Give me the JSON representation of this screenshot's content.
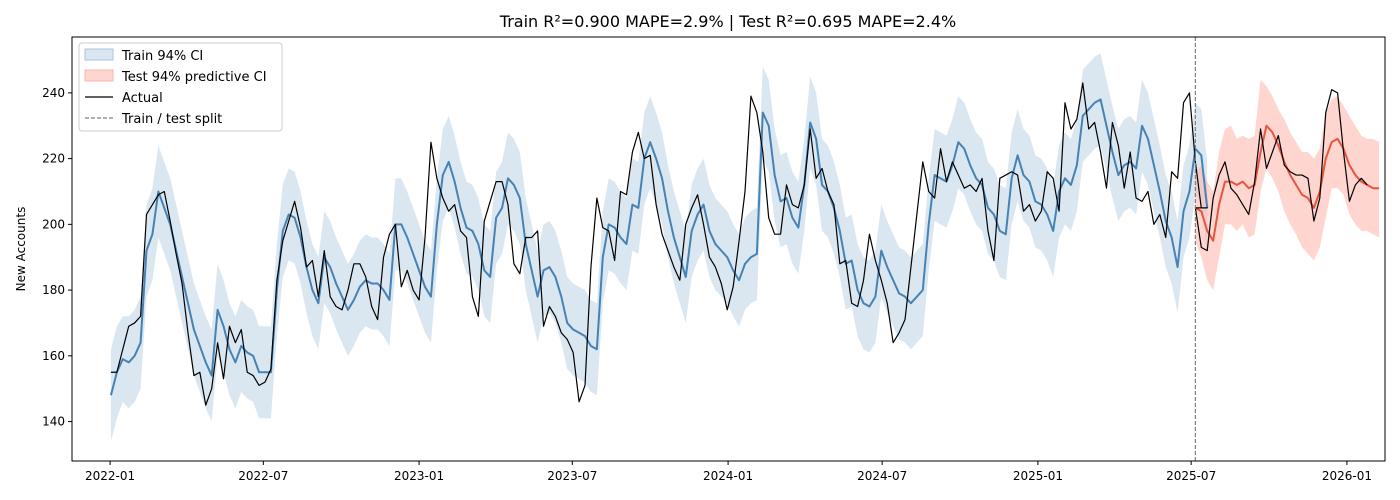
{
  "chart_data": {
    "type": "line",
    "title": "Train R²=0.900 MAPE=2.9%  |  Test R²=0.695 MAPE=2.4%",
    "xlabel": "",
    "ylabel": "New Accounts",
    "xlim": [
      "2021-11-17",
      "2026-02-15"
    ],
    "ylim": [
      128,
      257
    ],
    "x_ticks": [
      "2022-01",
      "2022-07",
      "2023-01",
      "2023-07",
      "2024-01",
      "2024-07",
      "2025-01",
      "2025-07",
      "2026-01"
    ],
    "x_tick_dates": [
      "2022-01-01",
      "2022-07-01",
      "2023-01-01",
      "2023-07-01",
      "2024-01-01",
      "2024-07-01",
      "2025-01-01",
      "2025-07-01",
      "2026-01-01"
    ],
    "y_ticks": [
      140,
      160,
      180,
      200,
      220,
      240
    ],
    "split_date": "2025-07-06",
    "legend_position": "upper-left",
    "colors": {
      "train_fit": "#4682b4",
      "train_ci": "#a8c5de",
      "test_fit": "#e8553e",
      "test_ci": "#ffb3a7",
      "actual": "#000000",
      "split": "#808080"
    },
    "legend": [
      {
        "label": "Train 94% CI",
        "kind": "patch-train"
      },
      {
        "label": "Test 94% predictive CI",
        "kind": "patch-test"
      },
      {
        "label": "Actual",
        "kind": "line-actual"
      },
      {
        "label": "Train / test split",
        "kind": "line-split"
      }
    ],
    "train": {
      "start": "2022-01-02",
      "step_days": 7,
      "fit": [
        148,
        155,
        159,
        158,
        160,
        164,
        192,
        197,
        210,
        205,
        200,
        192,
        184,
        176,
        168,
        163,
        158,
        154,
        174,
        169,
        162,
        158,
        163,
        161,
        160,
        155,
        155,
        155,
        180,
        198,
        203,
        202,
        196,
        187,
        180,
        176,
        190,
        187,
        182,
        178,
        174,
        177,
        181,
        183,
        182,
        182,
        180,
        177,
        200,
        200,
        196,
        191,
        186,
        181,
        178,
        200,
        215,
        219,
        213,
        205,
        199,
        198,
        194,
        186,
        184,
        202,
        205,
        214,
        212,
        208,
        194,
        186,
        178,
        186,
        187,
        184,
        178,
        170,
        168,
        167,
        166,
        163,
        162,
        190,
        200,
        199,
        196,
        194,
        206,
        205,
        220,
        225,
        220,
        214,
        204,
        196,
        190,
        184,
        198,
        203,
        206,
        198,
        194,
        192,
        190,
        186,
        183,
        188,
        190,
        191,
        234,
        230,
        215,
        207,
        208,
        202,
        199,
        212,
        231,
        226,
        212,
        210,
        205,
        198,
        188,
        189,
        180,
        176,
        175,
        178,
        192,
        187,
        183,
        179,
        178,
        176,
        178,
        180,
        200,
        215,
        214,
        213,
        218,
        225,
        223,
        218,
        214,
        212,
        205,
        203,
        198,
        197,
        214,
        221,
        215,
        213,
        207,
        206,
        203,
        198,
        210,
        214,
        212,
        218,
        233,
        235,
        237,
        238,
        230,
        222,
        215,
        218,
        219,
        217,
        230,
        226,
        218,
        210,
        201,
        196,
        187,
        204,
        210,
        223,
        221,
        205
      ],
      "ci_lower": [
        134,
        141,
        146,
        144,
        146,
        150,
        178,
        183,
        196,
        191,
        186,
        178,
        170,
        162,
        154,
        149,
        144,
        140,
        160,
        155,
        148,
        144,
        149,
        147,
        146,
        141,
        141,
        141,
        166,
        184,
        189,
        188,
        182,
        173,
        166,
        162,
        176,
        173,
        168,
        164,
        160,
        163,
        167,
        169,
        168,
        168,
        166,
        163,
        186,
        186,
        182,
        177,
        172,
        167,
        164,
        186,
        201,
        205,
        199,
        191,
        185,
        184,
        180,
        172,
        170,
        188,
        191,
        200,
        198,
        194,
        180,
        172,
        164,
        172,
        173,
        170,
        164,
        156,
        154,
        153,
        152,
        149,
        148,
        176,
        186,
        185,
        182,
        180,
        192,
        191,
        206,
        211,
        206,
        200,
        190,
        182,
        176,
        170,
        184,
        189,
        192,
        184,
        180,
        178,
        176,
        172,
        169,
        174,
        176,
        177,
        220,
        216,
        201,
        193,
        194,
        188,
        185,
        198,
        217,
        212,
        198,
        196,
        191,
        184,
        174,
        175,
        166,
        162,
        161,
        164,
        178,
        173,
        169,
        165,
        164,
        162,
        164,
        166,
        186,
        201,
        200,
        199,
        204,
        211,
        209,
        204,
        200,
        198,
        191,
        189,
        184,
        183,
        200,
        207,
        201,
        199,
        193,
        192,
        189,
        184,
        196,
        200,
        198,
        204,
        219,
        221,
        223,
        224,
        216,
        208,
        201,
        204,
        205,
        203,
        216,
        212,
        204,
        196,
        187,
        182,
        173,
        190,
        196,
        209,
        207,
        191
      ],
      "ci_upper": [
        162,
        169,
        172,
        172,
        174,
        178,
        206,
        211,
        224,
        219,
        214,
        206,
        198,
        190,
        182,
        177,
        172,
        168,
        188,
        183,
        176,
        172,
        177,
        175,
        174,
        169,
        169,
        169,
        194,
        212,
        217,
        216,
        210,
        201,
        194,
        190,
        204,
        201,
        196,
        192,
        188,
        191,
        195,
        197,
        196,
        196,
        194,
        191,
        214,
        214,
        210,
        205,
        200,
        195,
        192,
        214,
        229,
        233,
        227,
        219,
        213,
        212,
        208,
        200,
        198,
        216,
        219,
        228,
        226,
        222,
        208,
        200,
        192,
        200,
        201,
        198,
        192,
        184,
        182,
        181,
        180,
        177,
        176,
        204,
        214,
        213,
        210,
        208,
        220,
        219,
        234,
        239,
        234,
        228,
        218,
        210,
        204,
        198,
        212,
        217,
        220,
        212,
        208,
        206,
        204,
        200,
        197,
        202,
        204,
        205,
        248,
        244,
        229,
        221,
        222,
        216,
        213,
        226,
        245,
        240,
        226,
        224,
        219,
        212,
        202,
        203,
        194,
        190,
        189,
        192,
        206,
        201,
        197,
        193,
        192,
        190,
        192,
        194,
        214,
        229,
        228,
        227,
        232,
        239,
        237,
        232,
        228,
        226,
        219,
        217,
        212,
        211,
        228,
        235,
        229,
        227,
        221,
        220,
        217,
        212,
        224,
        228,
        226,
        232,
        247,
        249,
        251,
        252,
        244,
        236,
        229,
        232,
        233,
        231,
        244,
        240,
        232,
        224,
        215,
        210,
        201,
        218,
        224,
        237,
        235,
        219
      ],
      "actual": [
        155,
        155,
        162,
        169,
        170,
        172,
        203,
        206,
        209,
        210,
        201,
        191,
        182,
        167,
        154,
        155,
        145,
        150,
        164,
        153,
        169,
        164,
        168,
        155,
        154,
        151,
        152,
        156,
        183,
        195,
        201,
        207,
        199,
        187,
        189,
        178,
        192,
        178,
        175,
        174,
        180,
        188,
        188,
        184,
        175,
        171,
        190,
        197,
        200,
        181,
        186,
        180,
        177,
        196,
        225,
        214,
        208,
        204,
        206,
        198,
        196,
        178,
        172,
        201,
        207,
        213,
        213,
        206,
        188,
        185,
        196,
        196,
        198,
        169,
        175,
        172,
        167,
        165,
        161,
        146,
        151,
        187,
        208,
        199,
        198,
        189,
        210,
        209,
        222,
        228,
        220,
        221,
        206,
        197,
        192,
        187,
        183,
        200,
        205,
        209,
        200,
        190,
        187,
        182,
        174,
        181,
        195,
        210,
        239,
        234,
        222,
        202,
        197,
        197,
        212,
        206,
        205,
        212,
        229,
        214,
        217,
        210,
        206,
        188,
        189,
        176,
        175,
        183,
        197,
        189,
        183,
        176,
        164,
        167,
        171,
        187,
        203,
        219,
        210,
        208,
        223,
        213,
        219,
        215,
        211,
        212,
        210,
        214,
        198,
        189,
        214,
        215,
        216,
        215,
        204,
        206,
        201,
        204,
        216,
        214,
        204,
        237,
        229,
        232,
        243,
        229,
        231,
        222,
        211,
        231,
        224,
        211,
        222,
        208,
        207,
        210,
        200,
        203,
        196,
        216,
        214,
        237,
        240,
        219,
        205,
        205
      ]
    },
    "test": {
      "start": "2025-07-06",
      "step_days": 7,
      "fit": [
        205,
        204,
        198,
        195,
        206,
        213,
        213,
        212,
        213,
        211,
        212,
        222,
        230,
        228,
        224,
        219,
        215,
        212,
        209,
        208,
        205,
        210,
        220,
        225,
        226,
        223,
        218,
        215,
        213,
        212,
        211,
        211
      ],
      "ci_lower": [
        195,
        190,
        183,
        180,
        190,
        200,
        200,
        198,
        200,
        196,
        197,
        210,
        217,
        214,
        210,
        204,
        200,
        197,
        193,
        191,
        189,
        193,
        202,
        211,
        211,
        209,
        203,
        200,
        198,
        198,
        197,
        196
      ],
      "ci_upper": [
        216,
        218,
        213,
        210,
        222,
        229,
        230,
        226,
        227,
        226,
        227,
        244,
        242,
        239,
        235,
        232,
        228,
        225,
        222,
        222,
        220,
        223,
        234,
        238,
        239,
        236,
        233,
        230,
        227,
        226,
        226,
        225
      ],
      "actual": [
        205,
        193,
        192,
        208,
        215,
        219,
        211,
        209,
        206,
        203,
        213,
        229,
        217,
        222,
        227,
        218,
        216,
        215,
        215,
        214,
        201,
        208,
        234,
        241,
        240,
        222,
        207,
        212,
        214,
        212
      ]
    }
  }
}
